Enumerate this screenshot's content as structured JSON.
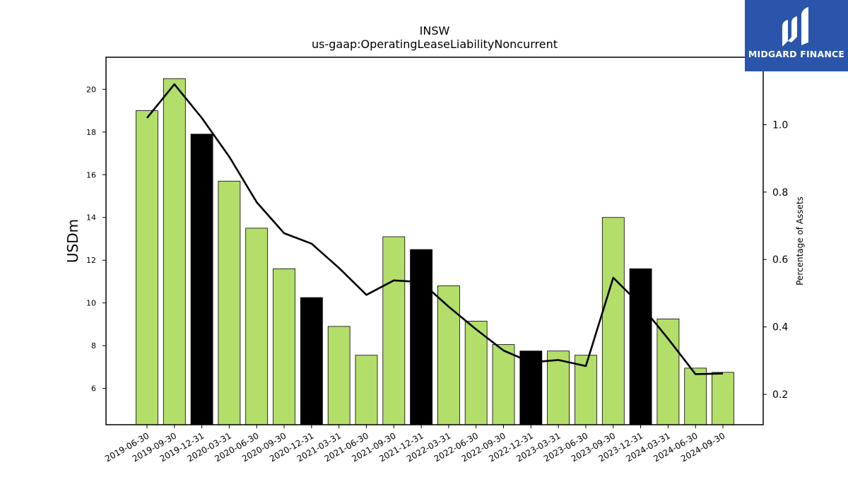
{
  "chart_data": {
    "type": "bar",
    "title": "INSW",
    "subtitle": "us-gaap:OperatingLeaseLiabilityNoncurrent",
    "ylabel": "USDm",
    "y2label": "Percentage of Assets",
    "ylim": [
      4.3,
      21.5
    ],
    "y2lim": [
      0.11,
      1.2
    ],
    "yticks": [
      6,
      8,
      10,
      12,
      14,
      16,
      18,
      20
    ],
    "y2ticks": [
      0.2,
      0.4,
      0.6,
      0.8,
      1.0
    ],
    "categories": [
      "2019-06-30",
      "2019-09-30",
      "2019-12-31",
      "2020-03-31",
      "2020-06-30",
      "2020-09-30",
      "2020-12-31",
      "2021-03-31",
      "2021-06-30",
      "2021-09-30",
      "2021-12-31",
      "2022-03-31",
      "2022-06-30",
      "2022-09-30",
      "2022-12-31",
      "2023-03-31",
      "2023-06-30",
      "2023-09-30",
      "2023-12-31",
      "2024-03-31",
      "2024-06-30",
      "2024-09-30"
    ],
    "series": [
      {
        "type": "bar",
        "values": [
          19.0,
          20.5,
          17.9,
          15.7,
          13.5,
          11.6,
          10.25,
          8.9,
          7.55,
          13.1,
          12.5,
          10.8,
          9.15,
          8.05,
          7.75,
          7.75,
          7.55,
          14.0,
          11.6,
          9.25,
          6.95,
          6.75
        ],
        "colors": [
          "#b3de69",
          "#b3de69",
          "#000000",
          "#b3de69",
          "#b3de69",
          "#b3de69",
          "#000000",
          "#b3de69",
          "#b3de69",
          "#b3de69",
          "#000000",
          "#b3de69",
          "#b3de69",
          "#b3de69",
          "#000000",
          "#b3de69",
          "#b3de69",
          "#b3de69",
          "#000000",
          "#b3de69",
          "#b3de69",
          "#b3de69"
        ]
      },
      {
        "type": "line",
        "axis": "right",
        "color": "#000000",
        "values": [
          1.02,
          1.12,
          1.02,
          0.905,
          0.77,
          0.678,
          0.647,
          0.575,
          0.495,
          0.538,
          0.533,
          0.46,
          0.393,
          0.33,
          0.295,
          0.302,
          0.284,
          0.546,
          0.465,
          0.365,
          0.26,
          0.262
        ]
      }
    ],
    "grid": false,
    "legend": "none"
  },
  "logo": {
    "text": "MIDGARD FINANCE",
    "background": "#2a55aa"
  }
}
